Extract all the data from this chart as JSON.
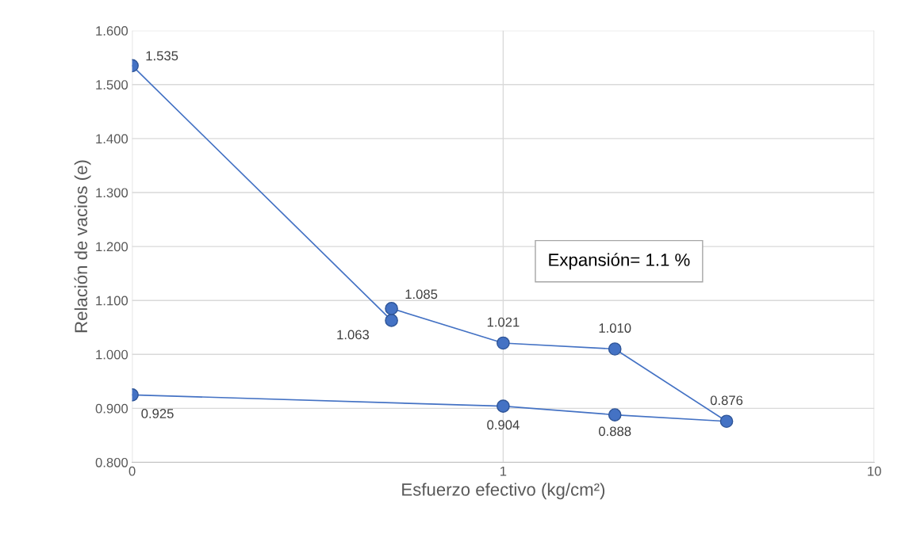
{
  "chart_data": {
    "type": "line",
    "xlabel": "Esfuerzo efectivo (kg/cm²)",
    "ylabel": "Relación de vacios (e)",
    "x": [
      0.1,
      0.5,
      0.5,
      1,
      2,
      4,
      2,
      1,
      0.1
    ],
    "series": [
      {
        "color": "#4472c4",
        "values": [
          1.535,
          1.063,
          1.085,
          1.021,
          1.01,
          0.876,
          0.888,
          0.904,
          0.925
        ]
      }
    ],
    "value_labels": [
      "1.535",
      "1.063",
      "1.085",
      "1.021",
      "1.010",
      "0.876",
      "0.888",
      "0.904",
      "0.925"
    ],
    "log": "x",
    "xlim": [
      0.1,
      10
    ],
    "xticks": [
      {
        "value": 0.1,
        "label": "0"
      },
      {
        "value": 1,
        "label": "1"
      },
      {
        "value": 10,
        "label": "10"
      }
    ],
    "ylim": [
      0.8,
      1.6
    ],
    "yticks": [
      {
        "value": 0.8,
        "label": "0.800"
      },
      {
        "value": 0.9,
        "label": "0.900"
      },
      {
        "value": 1.0,
        "label": "1.000"
      },
      {
        "value": 1.1,
        "label": "1.100"
      },
      {
        "value": 1.2,
        "label": "1.200"
      },
      {
        "value": 1.3,
        "label": "1.300"
      },
      {
        "value": 1.4,
        "label": "1.400"
      },
      {
        "value": 1.5,
        "label": "1.500"
      },
      {
        "value": 1.6,
        "label": "1.600"
      }
    ],
    "grid": true,
    "marker": "circle",
    "line_style": "solid",
    "annotations": [
      "Expansión= 1.1 %"
    ]
  }
}
